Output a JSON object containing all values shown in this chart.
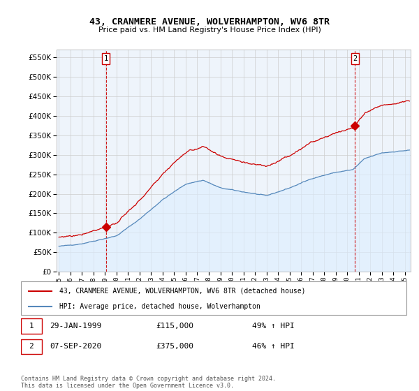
{
  "title": "43, CRANMERE AVENUE, WOLVERHAMPTON, WV6 8TR",
  "subtitle": "Price paid vs. HM Land Registry's House Price Index (HPI)",
  "legend_label_red": "43, CRANMERE AVENUE, WOLVERHAMPTON, WV6 8TR (detached house)",
  "legend_label_blue": "HPI: Average price, detached house, Wolverhampton",
  "annotation1_date": "29-JAN-1999",
  "annotation1_price": "£115,000",
  "annotation1_hpi": "49% ↑ HPI",
  "annotation2_date": "07-SEP-2020",
  "annotation2_price": "£375,000",
  "annotation2_hpi": "46% ↑ HPI",
  "footer": "Contains HM Land Registry data © Crown copyright and database right 2024.\nThis data is licensed under the Open Government Licence v3.0.",
  "sale1_date_num": 1999.08,
  "sale1_price": 115000,
  "sale2_date_num": 2020.68,
  "sale2_price": 375000,
  "ylim_min": 0,
  "ylim_max": 570000,
  "xlim_min": 1994.8,
  "xlim_max": 2025.5,
  "red_color": "#cc0000",
  "blue_color": "#5588bb",
  "blue_fill_color": "#ddeeff",
  "background_color": "#ffffff",
  "chart_bg_color": "#eef4fb",
  "grid_color": "#cccccc",
  "annotation_box_color": "#cc0000"
}
